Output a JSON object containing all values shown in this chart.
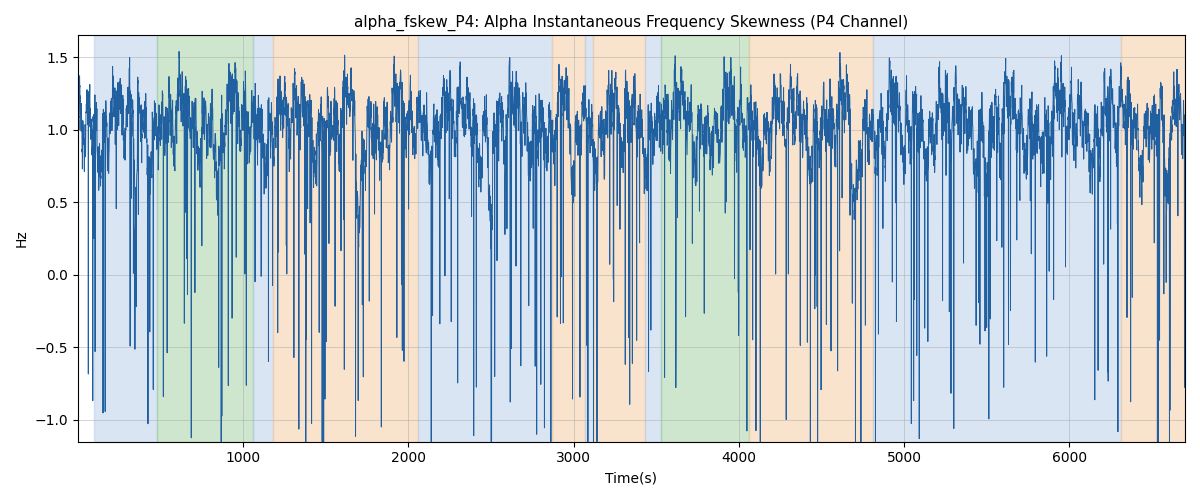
{
  "title": "alpha_fskew_P4: Alpha Instantaneous Frequency Skewness (P4 Channel)",
  "xlabel": "Time(s)",
  "ylabel": "Hz",
  "xlim": [
    0,
    6700
  ],
  "ylim": [
    -1.15,
    1.65
  ],
  "line_color": "#2060a0",
  "line_width": 0.7,
  "grid_color": "#aaaaaa",
  "background_color": "#ffffff",
  "colored_bands": [
    {
      "xmin": 100,
      "xmax": 480,
      "color": "#aec6e8",
      "alpha": 0.45
    },
    {
      "xmin": 480,
      "xmax": 1060,
      "color": "#90c990",
      "alpha": 0.45
    },
    {
      "xmin": 1060,
      "xmax": 1180,
      "color": "#aec6e8",
      "alpha": 0.45
    },
    {
      "xmin": 1180,
      "xmax": 2060,
      "color": "#f5c89a",
      "alpha": 0.5
    },
    {
      "xmin": 2060,
      "xmax": 2870,
      "color": "#aec6e8",
      "alpha": 0.45
    },
    {
      "xmin": 2870,
      "xmax": 3070,
      "color": "#f5c89a",
      "alpha": 0.5
    },
    {
      "xmin": 3070,
      "xmax": 3120,
      "color": "#aec6e8",
      "alpha": 0.45
    },
    {
      "xmin": 3120,
      "xmax": 3430,
      "color": "#f5c89a",
      "alpha": 0.5
    },
    {
      "xmin": 3430,
      "xmax": 3530,
      "color": "#aec6e8",
      "alpha": 0.45
    },
    {
      "xmin": 3530,
      "xmax": 4060,
      "color": "#90c990",
      "alpha": 0.45
    },
    {
      "xmin": 4060,
      "xmax": 4810,
      "color": "#f5c89a",
      "alpha": 0.5
    },
    {
      "xmin": 4810,
      "xmax": 6310,
      "color": "#aec6e8",
      "alpha": 0.45
    },
    {
      "xmin": 6310,
      "xmax": 6700,
      "color": "#f5c89a",
      "alpha": 0.5
    }
  ],
  "seed": 42,
  "n_points": 6700,
  "figsize": [
    12.0,
    5.0
  ],
  "dpi": 100
}
